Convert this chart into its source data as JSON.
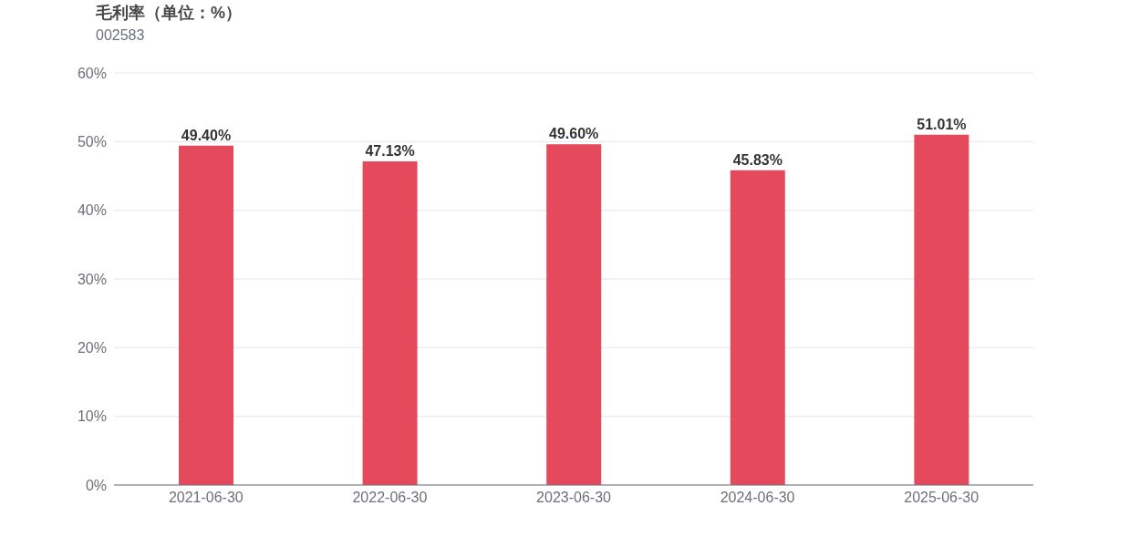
{
  "chart_data": {
    "type": "bar",
    "title": "毛利率（单位：%）",
    "subtitle": "002583",
    "categories": [
      "2021-06-30",
      "2022-06-30",
      "2023-06-30",
      "2024-06-30",
      "2025-06-30"
    ],
    "values": [
      49.4,
      47.13,
      49.6,
      45.83,
      51.01
    ],
    "value_labels": [
      "49.40%",
      "47.13%",
      "49.60%",
      "45.83%",
      "51.01%"
    ],
    "color": "#e54a5c",
    "ylim": [
      0,
      60
    ],
    "yticks": [
      {
        "value": 0,
        "label": "0%"
      },
      {
        "value": 10,
        "label": "10%"
      },
      {
        "value": 20,
        "label": "20%"
      },
      {
        "value": 30,
        "label": "30%"
      },
      {
        "value": 40,
        "label": "40%"
      },
      {
        "value": 50,
        "label": "50%"
      },
      {
        "value": 60,
        "label": "60%"
      }
    ],
    "grid": "y",
    "legend": false
  }
}
